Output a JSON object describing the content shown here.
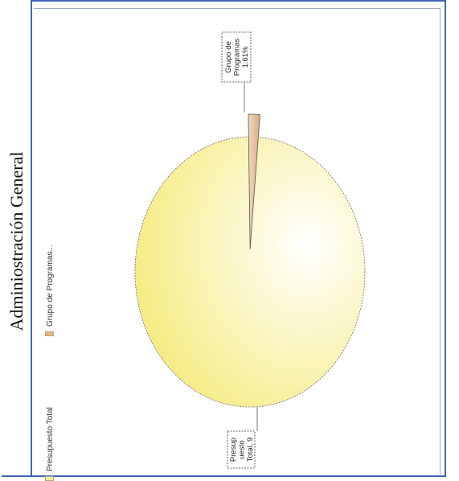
{
  "chart_data": {
    "type": "pie",
    "title": "Adminiostración General",
    "legend_position": "left",
    "slices": [
      {
        "name": "Presupuesto Total",
        "value": 98.39,
        "callout": [
          "Presup",
          "uesto",
          "Total, 9"
        ],
        "color": "#f6ec86"
      },
      {
        "name": "Grupo de Programas...",
        "value": 1.61,
        "callout": [
          "Grupo de",
          "Programas",
          "1.61%"
        ],
        "color": "#e9c8a6"
      }
    ],
    "legend": [
      "Presupuesto Total",
      "Grupo de Programas..."
    ]
  }
}
